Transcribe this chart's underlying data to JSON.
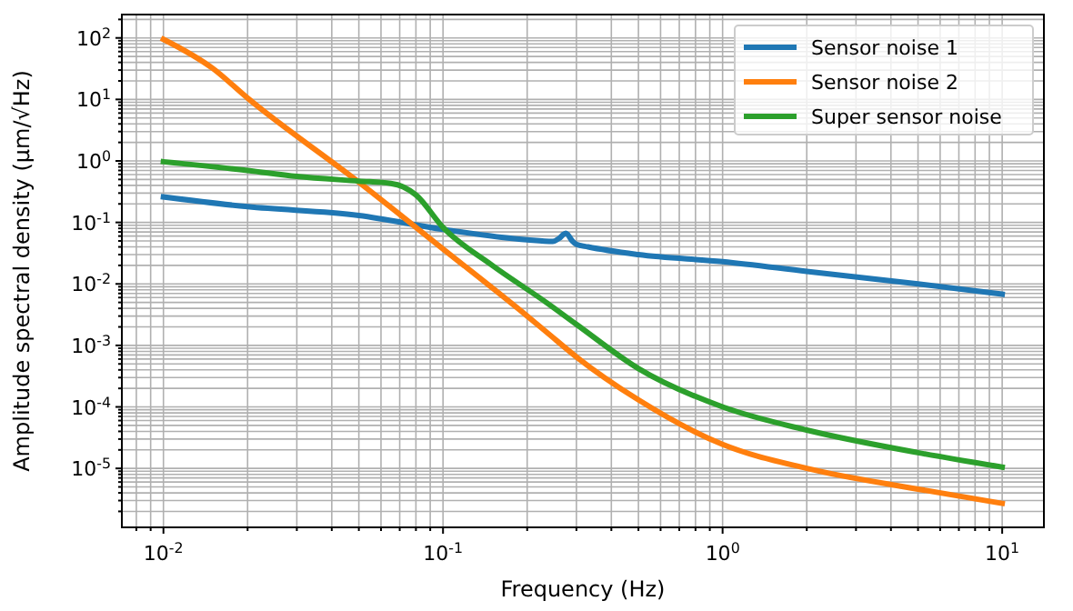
{
  "chart_data": {
    "type": "line",
    "xlabel": "Frequency (Hz)",
    "ylabel": "Amplitude spectral density (μm/√Hz)",
    "log": "xy",
    "grid": true,
    "legend": "top right",
    "line_style": "solid",
    "xlim": [
      0.0071,
      14.1
    ],
    "xticks": [
      {
        "value": 0.008,
        "label": null
      },
      {
        "value": 0.009,
        "label": null
      },
      {
        "value": 0.01,
        "label": "10$^{-2}$"
      },
      {
        "value": 0.02,
        "label": null
      },
      {
        "value": 0.03,
        "label": null
      },
      {
        "value": 0.04,
        "label": null
      },
      {
        "value": 0.05,
        "label": null
      },
      {
        "value": 0.06,
        "label": null
      },
      {
        "value": 0.07,
        "label": null
      },
      {
        "value": 0.08,
        "label": null
      },
      {
        "value": 0.09,
        "label": null
      },
      {
        "value": 0.1,
        "label": "10$^{-1}$"
      },
      {
        "value": 0.2,
        "label": null
      },
      {
        "value": 0.3,
        "label": null
      },
      {
        "value": 0.4,
        "label": null
      },
      {
        "value": 0.5,
        "label": null
      },
      {
        "value": 0.6,
        "label": null
      },
      {
        "value": 0.7,
        "label": null
      },
      {
        "value": 0.8,
        "label": null
      },
      {
        "value": 0.9,
        "label": null
      },
      {
        "value": 1,
        "label": "10$^{0}$"
      },
      {
        "value": 2,
        "label": null
      },
      {
        "value": 3,
        "label": null
      },
      {
        "value": 4,
        "label": null
      },
      {
        "value": 5,
        "label": null
      },
      {
        "value": 6,
        "label": null
      },
      {
        "value": 7,
        "label": null
      },
      {
        "value": 8,
        "label": null
      },
      {
        "value": 9,
        "label": null
      },
      {
        "value": 10,
        "label": "10$^{1}$"
      }
    ],
    "ylim": [
      1.1e-06,
      240
    ],
    "yticks": [
      {
        "value": 2e-06,
        "label": null
      },
      {
        "value": 3e-06,
        "label": null
      },
      {
        "value": 4e-06,
        "label": null
      },
      {
        "value": 5e-06,
        "label": null
      },
      {
        "value": 6e-06,
        "label": null
      },
      {
        "value": 7e-06,
        "label": null
      },
      {
        "value": 8e-06,
        "label": null
      },
      {
        "value": 9e-06,
        "label": null
      },
      {
        "value": 1e-05,
        "label": "10$^{-5}$"
      },
      {
        "value": 2e-05,
        "label": null
      },
      {
        "value": 3e-05,
        "label": null
      },
      {
        "value": 4e-05,
        "label": null
      },
      {
        "value": 5e-05,
        "label": null
      },
      {
        "value": 6e-05,
        "label": null
      },
      {
        "value": 7e-05,
        "label": null
      },
      {
        "value": 8e-05,
        "label": null
      },
      {
        "value": 9e-05,
        "label": null
      },
      {
        "value": 0.0001,
        "label": "10$^{-4}$"
      },
      {
        "value": 0.0002,
        "label": null
      },
      {
        "value": 0.0003,
        "label": null
      },
      {
        "value": 0.0004,
        "label": null
      },
      {
        "value": 0.0005,
        "label": null
      },
      {
        "value": 0.0006,
        "label": null
      },
      {
        "value": 0.0007,
        "label": null
      },
      {
        "value": 0.0008,
        "label": null
      },
      {
        "value": 0.0009,
        "label": null
      },
      {
        "value": 0.001,
        "label": "10$^{-3}$"
      },
      {
        "value": 0.002,
        "label": null
      },
      {
        "value": 0.003,
        "label": null
      },
      {
        "value": 0.004,
        "label": null
      },
      {
        "value": 0.005,
        "label": null
      },
      {
        "value": 0.006,
        "label": null
      },
      {
        "value": 0.007,
        "label": null
      },
      {
        "value": 0.008,
        "label": null
      },
      {
        "value": 0.009,
        "label": null
      },
      {
        "value": 0.01,
        "label": "10$^{-2}$"
      },
      {
        "value": 0.02,
        "label": null
      },
      {
        "value": 0.03,
        "label": null
      },
      {
        "value": 0.04,
        "label": null
      },
      {
        "value": 0.05,
        "label": null
      },
      {
        "value": 0.06,
        "label": null
      },
      {
        "value": 0.07,
        "label": null
      },
      {
        "value": 0.08,
        "label": null
      },
      {
        "value": 0.09,
        "label": null
      },
      {
        "value": 0.1,
        "label": "10$^{-1}$"
      },
      {
        "value": 0.2,
        "label": null
      },
      {
        "value": 0.3,
        "label": null
      },
      {
        "value": 0.4,
        "label": null
      },
      {
        "value": 0.5,
        "label": null
      },
      {
        "value": 0.6,
        "label": null
      },
      {
        "value": 0.7,
        "label": null
      },
      {
        "value": 0.8,
        "label": null
      },
      {
        "value": 0.9,
        "label": null
      },
      {
        "value": 1,
        "label": "10$^{0}$"
      },
      {
        "value": 2,
        "label": null
      },
      {
        "value": 3,
        "label": null
      },
      {
        "value": 4,
        "label": null
      },
      {
        "value": 5,
        "label": null
      },
      {
        "value": 6,
        "label": null
      },
      {
        "value": 7,
        "label": null
      },
      {
        "value": 8,
        "label": null
      },
      {
        "value": 9,
        "label": null
      },
      {
        "value": 10,
        "label": "10$^{1}$"
      },
      {
        "value": 20,
        "label": null
      },
      {
        "value": 30,
        "label": null
      },
      {
        "value": 40,
        "label": null
      },
      {
        "value": 50,
        "label": null
      },
      {
        "value": 60,
        "label": null
      },
      {
        "value": 70,
        "label": null
      },
      {
        "value": 80,
        "label": null
      },
      {
        "value": 90,
        "label": null
      },
      {
        "value": 100,
        "label": "10$^{2}$"
      },
      {
        "value": 200,
        "label": null
      }
    ],
    "series": [
      {
        "name": "Sensor noise 1",
        "color": "#1f77b4",
        "x": [
          0.01,
          0.02,
          0.05,
          0.1,
          0.2,
          0.247,
          0.26,
          0.275,
          0.29,
          0.3,
          0.33,
          0.5,
          1,
          2,
          5,
          10
        ],
        "values": [
          0.26,
          0.18,
          0.13,
          0.077,
          0.052,
          0.049,
          0.055,
          0.067,
          0.05,
          0.044,
          0.04,
          0.03,
          0.023,
          0.016,
          0.01,
          0.0068
        ]
      },
      {
        "name": "Sensor noise 2",
        "color": "#ff7f0e",
        "x": [
          0.01,
          0.015,
          0.02,
          0.05,
          0.1,
          0.2,
          0.234,
          0.3,
          0.5,
          1,
          2,
          5,
          10
        ],
        "values": [
          95,
          32,
          10.5,
          0.45,
          0.037,
          0.003,
          0.00166,
          0.00065,
          0.00013,
          2.45e-05,
          1e-05,
          4.6e-06,
          2.7e-06
        ]
      },
      {
        "name": "Super sensor noise",
        "color": "#2ca02c",
        "x": [
          0.01,
          0.02,
          0.03,
          0.05,
          0.065,
          0.072,
          0.08,
          0.1,
          0.15,
          0.234,
          0.3,
          0.5,
          1,
          2,
          5,
          10
        ],
        "values": [
          0.97,
          0.7,
          0.56,
          0.47,
          0.43,
          0.38,
          0.28,
          0.083,
          0.02,
          0.005,
          0.0022,
          0.00042,
          0.0001,
          4.2e-05,
          1.8e-05,
          1.05e-05
        ]
      }
    ]
  }
}
